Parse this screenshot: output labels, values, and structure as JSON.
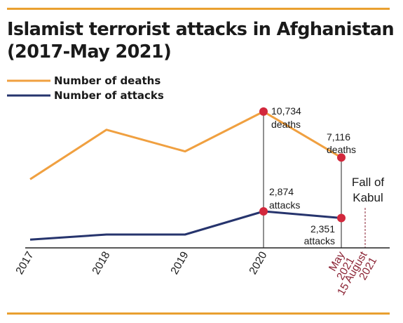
{
  "title": {
    "line1": "Islamist terrorist attacks in Afghanistan",
    "line2": "(2017-May 2021)"
  },
  "colors": {
    "rule": "#e9a030",
    "deaths": "#f0a040",
    "attacks": "#26346d",
    "marker": "#d2283c",
    "highlight": "#8a2233"
  },
  "chart_data": {
    "type": "line",
    "categories": [
      "2017",
      "2018",
      "2019",
      "2020",
      "May 2021"
    ],
    "series": [
      {
        "name": "Number of deaths",
        "values": [
          5400,
          9300,
          7600,
          10734,
          7116
        ]
      },
      {
        "name": "Number of attacks",
        "values": [
          650,
          1050,
          1050,
          2874,
          2351
        ]
      }
    ],
    "ylim": [
      0,
      12000
    ],
    "grid": false,
    "legend": "top-left",
    "annotations": {
      "deaths_2020": {
        "value": "10,734",
        "unit": "deaths"
      },
      "deaths_2021": {
        "value": "7,116",
        "unit": "deaths"
      },
      "attacks_2020": {
        "value": "2,874",
        "unit": "attacks"
      },
      "attacks_2021": {
        "value": "2,351",
        "unit": "attacks"
      },
      "event": {
        "line1": "Fall of",
        "line2": "Kabul",
        "date_line1": "15 August",
        "date_line2": "2021"
      }
    }
  }
}
